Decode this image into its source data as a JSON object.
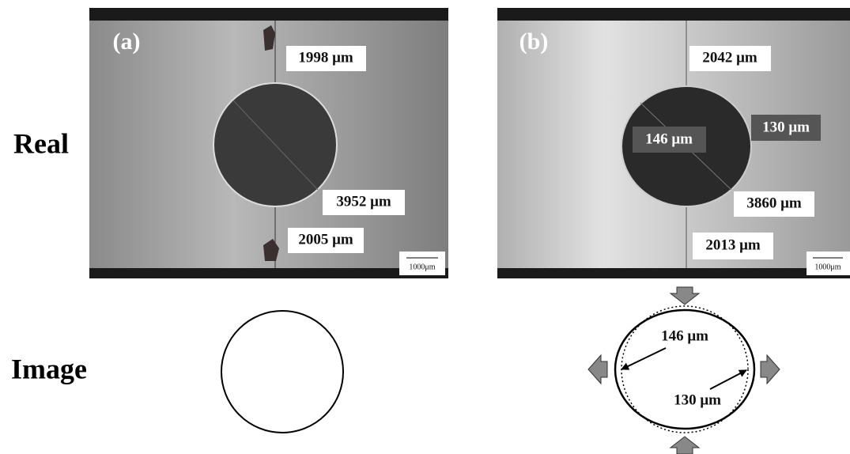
{
  "row_labels": [
    "Real",
    "Image"
  ],
  "panels": [
    {
      "label": "(a)",
      "measurements": [
        "1998 μm",
        "3952 μm",
        "2005 μm"
      ],
      "scale_bar": "1000μm"
    },
    {
      "label": "(b)",
      "measurements": [
        "2042 μm",
        "146 μm",
        "130 μm",
        "3860 μm",
        "2013 μm"
      ],
      "scale_bar": "1000μm"
    }
  ],
  "schematic": {
    "labels": [
      "146 μm",
      "130 μm"
    ]
  }
}
